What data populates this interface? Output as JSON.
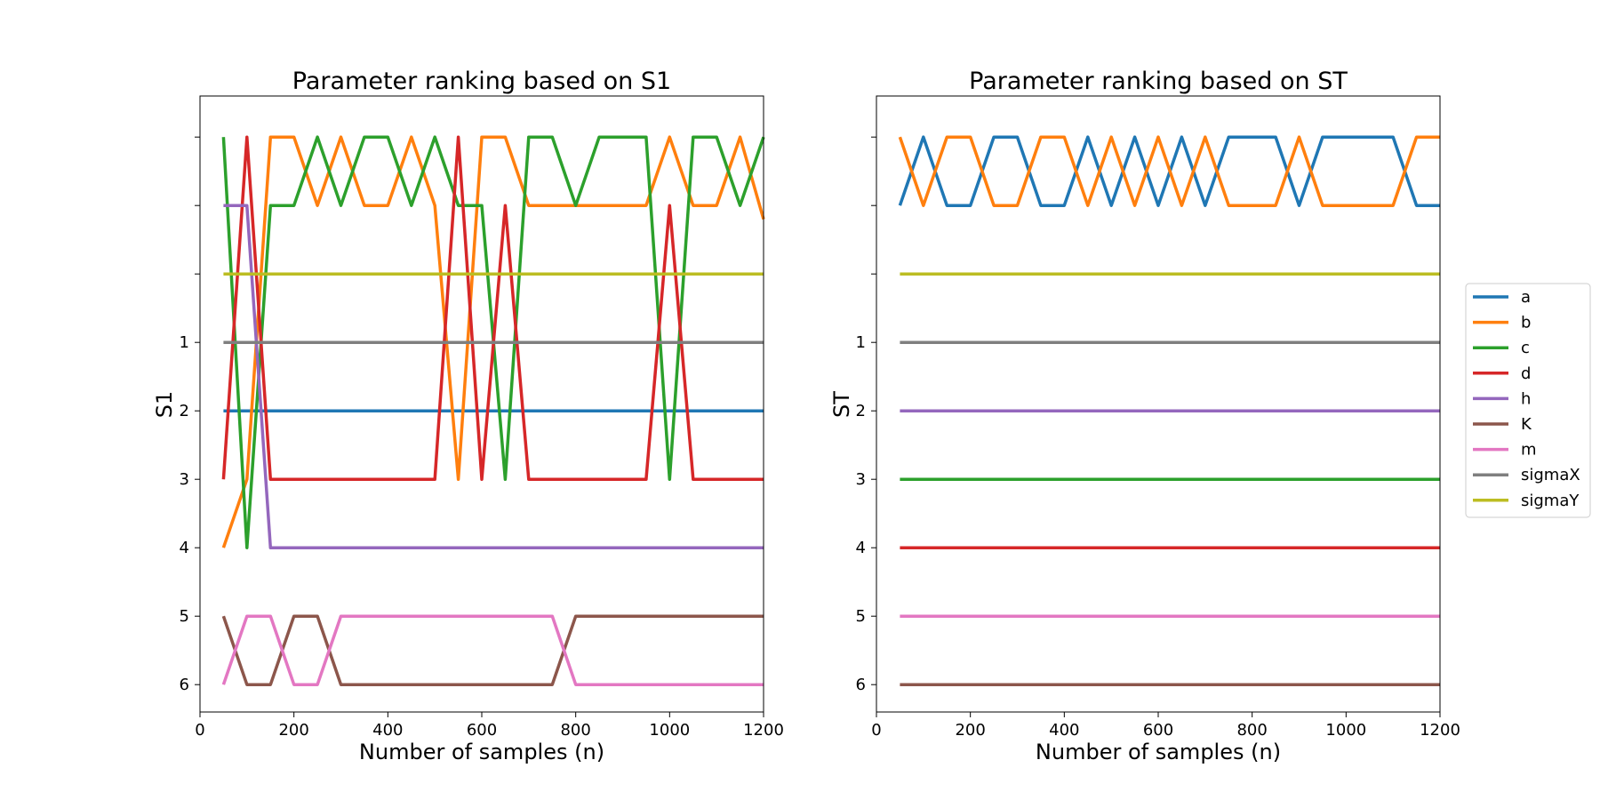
{
  "chart_data": [
    {
      "type": "line",
      "title": "Parameter ranking based on S1",
      "xlabel": "Number of samples (n)",
      "ylabel": "S1",
      "xlim": [
        0,
        1200
      ],
      "ylim_inverted": [
        0.5,
        9.4
      ],
      "x_ticks": [
        "0",
        "200",
        "400",
        "600",
        "800",
        "1000",
        "1200"
      ],
      "y_ticks": [
        "1",
        "2",
        "3",
        "4",
        "5",
        "6",
        "",
        "",
        ""
      ],
      "x": [
        50,
        100,
        150,
        200,
        250,
        300,
        350,
        400,
        450,
        500,
        550,
        600,
        650,
        700,
        750,
        800,
        850,
        900,
        950,
        1000,
        1050,
        1100,
        1150,
        1200
      ],
      "series": [
        {
          "name": "a",
          "values": [
            2,
            2,
            2,
            2,
            2,
            2,
            2,
            2,
            2,
            2,
            2,
            2,
            2,
            2,
            2,
            2,
            2,
            2,
            2,
            2,
            2,
            2,
            2,
            2
          ]
        },
        {
          "name": "b",
          "values": [
            4,
            3,
            9,
            9,
            8,
            9,
            8,
            8,
            9,
            8,
            3,
            9,
            9,
            8,
            8,
            8,
            8,
            8,
            8,
            9,
            8,
            8,
            9,
            7.8
          ]
        },
        {
          "name": "c",
          "values": [
            9,
            4,
            8,
            8,
            9,
            8,
            9,
            9,
            8,
            9,
            8,
            8,
            3,
            9,
            9,
            8,
            9,
            9,
            9,
            3,
            9,
            9,
            8,
            9
          ]
        },
        {
          "name": "d",
          "values": [
            3,
            9,
            3,
            3,
            3,
            3,
            3,
            3,
            3,
            3,
            9,
            3,
            8,
            3,
            3,
            3,
            3,
            3,
            3,
            8,
            3,
            3,
            3,
            3
          ]
        },
        {
          "name": "h",
          "values": [
            8,
            8,
            4,
            4,
            4,
            4,
            4,
            4,
            4,
            4,
            4,
            4,
            4,
            4,
            4,
            4,
            4,
            4,
            4,
            4,
            4,
            4,
            4,
            4
          ]
        },
        {
          "name": "K",
          "values": [
            5,
            6,
            6,
            5,
            5,
            6,
            6,
            6,
            6,
            6,
            6,
            6,
            6,
            6,
            6,
            5,
            5,
            5,
            5,
            5,
            5,
            5,
            5,
            5
          ]
        },
        {
          "name": "m",
          "values": [
            6,
            5,
            5,
            6,
            6,
            5,
            5,
            5,
            5,
            5,
            5,
            5,
            5,
            5,
            5,
            6,
            6,
            6,
            6,
            6,
            6,
            6,
            6,
            6
          ]
        },
        {
          "name": "sigmaX",
          "values": [
            1,
            1,
            1,
            1,
            1,
            1,
            1,
            1,
            1,
            1,
            1,
            1,
            1,
            1,
            1,
            1,
            1,
            1,
            1,
            1,
            1,
            1,
            1,
            1
          ]
        },
        {
          "name": "sigmaY",
          "values": [
            7,
            7,
            7,
            7,
            7,
            7,
            7,
            7,
            7,
            7,
            7,
            7,
            7,
            7,
            7,
            7,
            7,
            7,
            7,
            7,
            7,
            7,
            7,
            7
          ]
        }
      ]
    },
    {
      "type": "line",
      "title": "Parameter ranking based on ST",
      "xlabel": "Number of samples (n)",
      "ylabel": "ST",
      "xlim": [
        0,
        1200
      ],
      "ylim_inverted": [
        0.5,
        9.4
      ],
      "x_ticks": [
        "0",
        "200",
        "400",
        "600",
        "800",
        "1000",
        "1200"
      ],
      "y_ticks": [
        "1",
        "2",
        "3",
        "4",
        "5",
        "6",
        "",
        "",
        ""
      ],
      "x": [
        50,
        100,
        150,
        200,
        250,
        300,
        350,
        400,
        450,
        500,
        550,
        600,
        650,
        700,
        750,
        800,
        850,
        900,
        950,
        1000,
        1050,
        1100,
        1150,
        1200
      ],
      "series": [
        {
          "name": "a",
          "values": [
            8,
            9,
            8,
            8,
            9,
            9,
            8,
            8,
            9,
            8,
            9,
            8,
            9,
            8,
            9,
            9,
            9,
            8,
            9,
            9,
            9,
            9,
            8,
            8
          ]
        },
        {
          "name": "b",
          "values": [
            9,
            8,
            9,
            9,
            8,
            8,
            9,
            9,
            8,
            9,
            8,
            9,
            8,
            9,
            8,
            8,
            8,
            9,
            8,
            8,
            8,
            8,
            9,
            9
          ]
        },
        {
          "name": "c",
          "values": [
            3,
            3,
            3,
            3,
            3,
            3,
            3,
            3,
            3,
            3,
            3,
            3,
            3,
            3,
            3,
            3,
            3,
            3,
            3,
            3,
            3,
            3,
            3,
            3
          ]
        },
        {
          "name": "d",
          "values": [
            4,
            4,
            4,
            4,
            4,
            4,
            4,
            4,
            4,
            4,
            4,
            4,
            4,
            4,
            4,
            4,
            4,
            4,
            4,
            4,
            4,
            4,
            4,
            4
          ]
        },
        {
          "name": "h",
          "values": [
            2,
            2,
            2,
            2,
            2,
            2,
            2,
            2,
            2,
            2,
            2,
            2,
            2,
            2,
            2,
            2,
            2,
            2,
            2,
            2,
            2,
            2,
            2,
            2
          ]
        },
        {
          "name": "K",
          "values": [
            6,
            6,
            6,
            6,
            6,
            6,
            6,
            6,
            6,
            6,
            6,
            6,
            6,
            6,
            6,
            6,
            6,
            6,
            6,
            6,
            6,
            6,
            6,
            6
          ]
        },
        {
          "name": "m",
          "values": [
            5,
            5,
            5,
            5,
            5,
            5,
            5,
            5,
            5,
            5,
            5,
            5,
            5,
            5,
            5,
            5,
            5,
            5,
            5,
            5,
            5,
            5,
            5,
            5
          ]
        },
        {
          "name": "sigmaX",
          "values": [
            1,
            1,
            1,
            1,
            1,
            1,
            1,
            1,
            1,
            1,
            1,
            1,
            1,
            1,
            1,
            1,
            1,
            1,
            1,
            1,
            1,
            1,
            1,
            1
          ]
        },
        {
          "name": "sigmaY",
          "values": [
            7,
            7,
            7,
            7,
            7,
            7,
            7,
            7,
            7,
            7,
            7,
            7,
            7,
            7,
            7,
            7,
            7,
            7,
            7,
            7,
            7,
            7,
            7,
            7
          ]
        }
      ]
    }
  ],
  "series_colors": {
    "a": "#1f77b4",
    "b": "#ff7f0e",
    "c": "#2ca02c",
    "d": "#d62728",
    "h": "#9467bd",
    "K": "#8c564b",
    "m": "#e377c2",
    "sigmaX": "#7f7f7f",
    "sigmaY": "#bcbd22"
  },
  "legend": {
    "placement": "outside-right",
    "entries": [
      "a",
      "b",
      "c",
      "d",
      "h",
      "K",
      "m",
      "sigmaX",
      "sigmaY"
    ]
  }
}
